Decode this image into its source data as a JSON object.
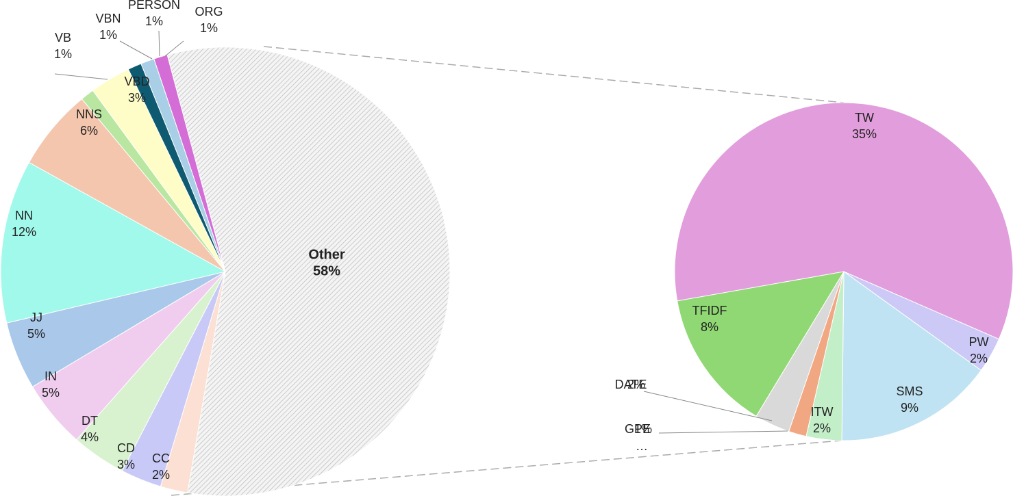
{
  "chart_data": [
    {
      "type": "pie",
      "categories": [
        "Other",
        "CC",
        "CD",
        "DT",
        "IN",
        "JJ",
        "NN",
        "NNS",
        "VB",
        "VBD",
        "VBN",
        "PERSON",
        "ORG"
      ],
      "values": [
        58,
        2,
        3,
        4,
        5,
        5,
        12,
        6,
        1,
        3,
        1,
        1,
        1
      ],
      "value_labels": [
        "58%",
        "2%",
        "3%",
        "4%",
        "5%",
        "5%",
        "12%",
        "6%",
        "1%",
        "3%",
        "1%",
        "1%",
        "1%"
      ],
      "colors": [
        "hatch",
        "#fbe0d3",
        "#c9c9f7",
        "#d8f1cf",
        "#f0cdef",
        "#a9c8ea",
        "#a0f9ea",
        "#f4c6ad",
        "#b9e6a0",
        "#fefdc7",
        "#0e5a70",
        "#a9cfe6",
        "#d46ed6"
      ]
    },
    {
      "type": "pie",
      "categories": [
        "TW",
        "PW",
        "SMS",
        "ITW",
        "GPE",
        "DATE",
        "TFIDF"
      ],
      "values": [
        35,
        2,
        9,
        2,
        1,
        2,
        8
      ],
      "value_labels": [
        "35%",
        "2%",
        "9%",
        "2%",
        "1%",
        "2%",
        "8%"
      ],
      "colors": [
        "#e29ddc",
        "#ccc9f7",
        "#bfe3f2",
        "#c3efc8",
        "#f0a782",
        "#d9d9d9",
        "#8fd873"
      ],
      "more": "…"
    }
  ]
}
